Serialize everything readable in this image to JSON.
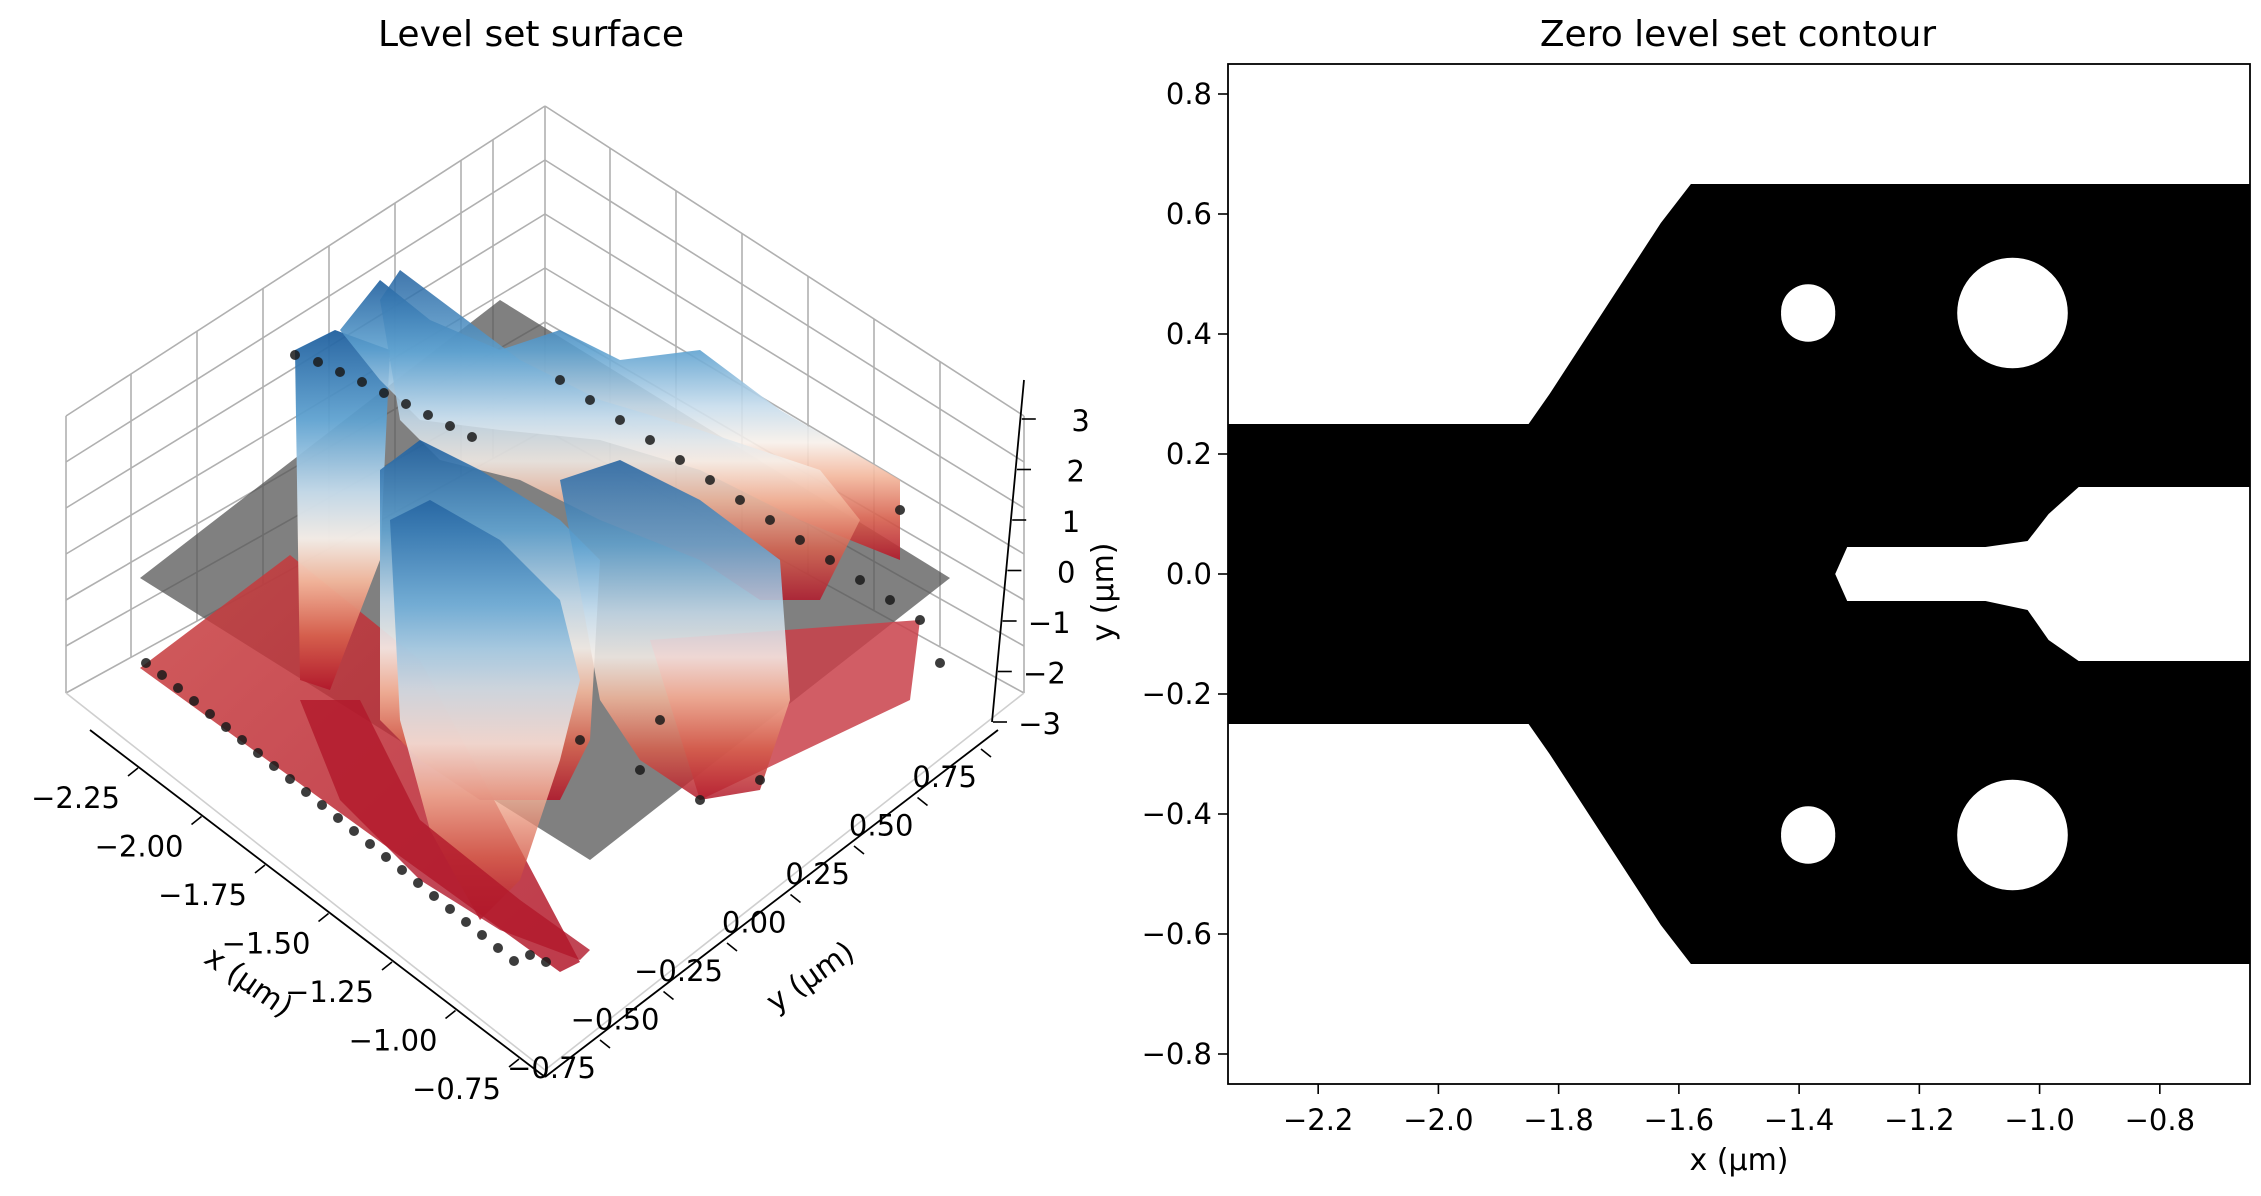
{
  "chart_data": [
    {
      "type": "surface3d",
      "title": "Level set surface",
      "xlabel": "x (μm)",
      "ylabel": "y (μm)",
      "x_ticks": [
        "−2.25",
        "−2.00",
        "−1.75",
        "−1.50",
        "−1.25",
        "−1.00",
        "−0.75"
      ],
      "y_ticks": [
        "−0.75",
        "−0.50",
        "−0.25",
        "0.00",
        "0.25",
        "0.50",
        "0.75"
      ],
      "z_ticks": [
        "−3",
        "−2",
        "−1",
        "0",
        "1",
        "2",
        "3"
      ],
      "xlim": [
        -2.35,
        -0.65
      ],
      "ylim": [
        -0.85,
        0.85
      ],
      "zlim": [
        -3.3,
        3.6
      ],
      "zero_plane": 0,
      "colormap": "RdBu",
      "colors": {
        "low": "#b2182b",
        "mid": "#f7f7f7",
        "high": "#2166ac",
        "plane": "#555555",
        "points": "#1a1a1a"
      },
      "grid": true
    },
    {
      "type": "contour",
      "title": "Zero level set contour",
      "xlabel": "x (μm)",
      "x_ticks": [
        -2.2,
        -2.0,
        -1.8,
        -1.6,
        -1.4,
        -1.2,
        -1.0,
        -0.8
      ],
      "x_tick_labels": [
        "−2.2",
        "−2.0",
        "−1.8",
        "−1.6",
        "−1.4",
        "−1.2",
        "−1.0",
        "−0.8"
      ],
      "y_ticks": [
        -0.8,
        -0.6,
        -0.4,
        -0.2,
        0.0,
        0.2,
        0.4,
        0.6,
        0.8
      ],
      "y_tick_labels": [
        "−0.8",
        "−0.6",
        "−0.4",
        "−0.2",
        "0.0",
        "0.2",
        "0.4",
        "0.6",
        "0.8"
      ],
      "xlim": [
        -2.35,
        -0.65
      ],
      "ylim": [
        -0.85,
        0.85
      ],
      "fill_color": "#000000",
      "background_color": "#ffffff",
      "outline": [
        [
          -2.35,
          0.25
        ],
        [
          -1.85,
          0.25
        ],
        [
          -1.815,
          0.3
        ],
        [
          -1.63,
          0.585
        ],
        [
          -1.58,
          0.65
        ],
        [
          -0.65,
          0.65
        ],
        [
          -0.65,
          0.145
        ],
        [
          -0.935,
          0.145
        ],
        [
          -0.985,
          0.1
        ],
        [
          -1.02,
          0.055
        ],
        [
          -1.09,
          0.045
        ],
        [
          -1.2,
          0.045
        ],
        [
          -1.32,
          0.045
        ],
        [
          -1.34,
          0.0
        ],
        [
          -1.32,
          -0.045
        ],
        [
          -1.2,
          -0.045
        ],
        [
          -1.09,
          -0.045
        ],
        [
          -1.02,
          -0.06
        ],
        [
          -0.985,
          -0.11
        ],
        [
          -0.935,
          -0.145
        ],
        [
          -0.65,
          -0.145
        ],
        [
          -0.65,
          -0.65
        ],
        [
          -1.58,
          -0.65
        ],
        [
          -1.63,
          -0.585
        ],
        [
          -1.815,
          -0.3
        ],
        [
          -1.85,
          -0.25
        ],
        [
          -2.35,
          -0.25
        ]
      ],
      "holes": [
        {
          "cx": -1.385,
          "cy": 0.435,
          "r": 0.045
        },
        {
          "cx": -1.045,
          "cy": 0.435,
          "r": 0.092
        },
        {
          "cx": -1.385,
          "cy": -0.435,
          "r": 0.045
        },
        {
          "cx": -1.045,
          "cy": -0.435,
          "r": 0.092
        }
      ]
    }
  ]
}
